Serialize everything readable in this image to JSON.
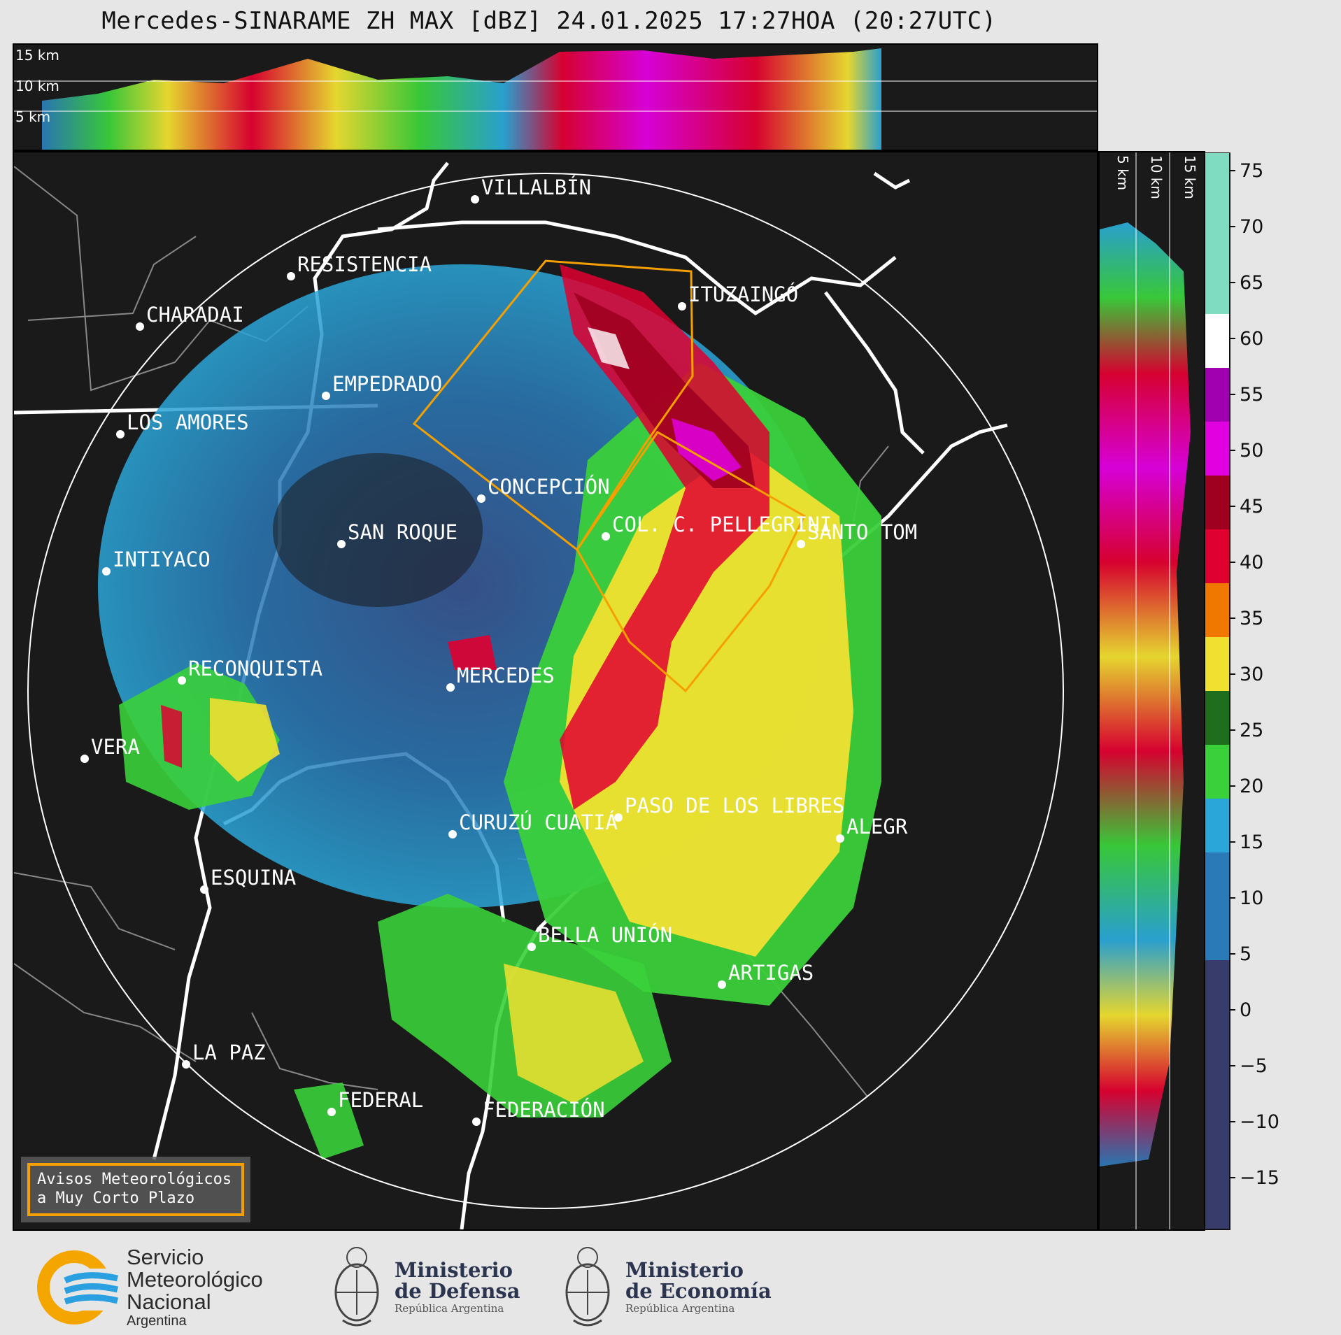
{
  "title": "Mercedes-SINARAME ZH MAX [dBZ] 24.01.2025 17:27HOA (20:27UTC)",
  "top_panel": {
    "height_labels": [
      "15 km",
      "10 km",
      "5 km"
    ]
  },
  "side_panel": {
    "height_labels": [
      "5 km",
      "10 km",
      "15 km"
    ]
  },
  "colorbar": {
    "ticks": [
      "75",
      "70",
      "65",
      "60",
      "55",
      "50",
      "45",
      "40",
      "35",
      "30",
      "25",
      "20",
      "15",
      "10",
      "5",
      "0",
      "−5",
      "−10",
      "−15"
    ],
    "colors": {
      "teal": "#7fdcc0",
      "white": "#ffffff",
      "purple": "#a000b0",
      "magenta": "#e000e0",
      "darkred": "#a00020",
      "red": "#e00030",
      "orange": "#f07800",
      "yellow": "#f0e030",
      "darkgreen": "#1e6e1e",
      "green": "#3ad03a",
      "cyan": "#2aa6d8",
      "blue": "#2a7ab8",
      "navy": "#383c6a"
    }
  },
  "cities": [
    {
      "name": "VILLALBÍN"
    },
    {
      "name": "RESISTENCIA"
    },
    {
      "name": "CHARADAI"
    },
    {
      "name": "ITUZAINGÓ"
    },
    {
      "name": "EMPEDRADO"
    },
    {
      "name": "LOS AMORES"
    },
    {
      "name": "CONCEPCIÓN"
    },
    {
      "name": "SAN ROQUE"
    },
    {
      "name": "COL. C. PELLEGRINI"
    },
    {
      "name": "SANTO TOM"
    },
    {
      "name": "INTIYACO"
    },
    {
      "name": "RECONQUISTA"
    },
    {
      "name": "MERCEDES"
    },
    {
      "name": "VERA"
    },
    {
      "name": "PASO DE LOS LIBRES"
    },
    {
      "name": "CURUZÚ CUATIÁ"
    },
    {
      "name": "ALEGR"
    },
    {
      "name": "ESQUINA"
    },
    {
      "name": "BELLA UNIÓN"
    },
    {
      "name": "ARTIGAS"
    },
    {
      "name": "LA PAZ"
    },
    {
      "name": "FEDERAL"
    },
    {
      "name": "FEDERACIÓN"
    }
  ],
  "warning": {
    "line1": "Avisos Meteorológicos",
    "line2": "a Muy Corto Plazo"
  },
  "logos": {
    "smn": {
      "line1": "Servicio",
      "line2": "Meteorológico",
      "line3": "Nacional",
      "line4": "Argentina"
    },
    "defensa": {
      "line1": "Ministerio",
      "line2": "de Defensa",
      "line3": "República Argentina"
    },
    "economia": {
      "line1": "Ministerio",
      "line2": "de Economía",
      "line3": "República Argentina"
    }
  }
}
